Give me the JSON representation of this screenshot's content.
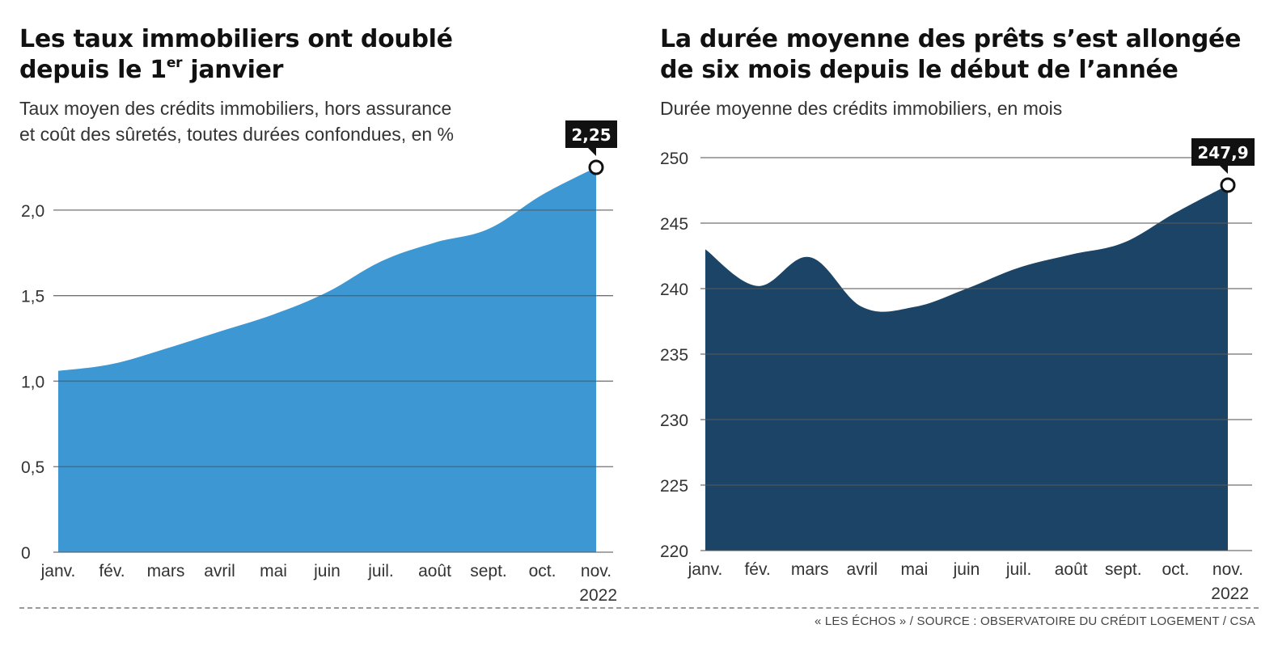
{
  "source": "« LES ÉCHOS » / SOURCE : OBSERVATOIRE DU CRÉDIT LOGEMENT / CSA",
  "chart_data": [
    {
      "type": "area",
      "title_main": "Les taux immobiliers ont doublé",
      "title_line2_prefix": "depuis le 1",
      "title_sup": "er",
      "title_line2_suffix": " janvier",
      "subtitle_line1": "Taux moyen des crédits immobiliers, hors assurance",
      "subtitle_line2": "et coût des sûretés, toutes durées confondues, en %",
      "categories": [
        "janv.",
        "fév.",
        "mars",
        "avril",
        "mai",
        "juin",
        "juil.",
        "août",
        "sept.",
        "oct.",
        "nov."
      ],
      "year_label": "2022",
      "values": [
        1.06,
        1.1,
        1.19,
        1.29,
        1.39,
        1.52,
        1.7,
        1.81,
        1.89,
        2.09,
        2.25
      ],
      "ylim": [
        0,
        2.25
      ],
      "yticks": [
        0,
        0.5,
        1.0,
        1.5,
        2.0
      ],
      "ytick_labels": [
        "0",
        "0,5",
        "1,0",
        "1,5",
        "2,0"
      ],
      "callout": "2,25",
      "color": "#3d97d3",
      "grid": true
    },
    {
      "type": "area",
      "title_line1": "La durée moyenne des prêts s’est allongée",
      "title_line2": "de six mois depuis le début de l’année",
      "subtitle_line1": "Durée moyenne des crédits immobiliers, en mois",
      "categories": [
        "janv.",
        "fév.",
        "mars",
        "avril",
        "mai",
        "juin",
        "juil.",
        "août",
        "sept.",
        "oct.",
        "nov."
      ],
      "year_label": "2022",
      "values": [
        243.0,
        240.2,
        242.4,
        238.6,
        238.6,
        240.0,
        241.6,
        242.6,
        243.5,
        245.8,
        247.9
      ],
      "ylim": [
        220,
        250
      ],
      "yticks": [
        220,
        225,
        230,
        235,
        240,
        245,
        250
      ],
      "ytick_labels": [
        "220",
        "225",
        "230",
        "235",
        "240",
        "245",
        "250"
      ],
      "callout": "247,9",
      "color": "#1b4466",
      "grid": true
    }
  ]
}
